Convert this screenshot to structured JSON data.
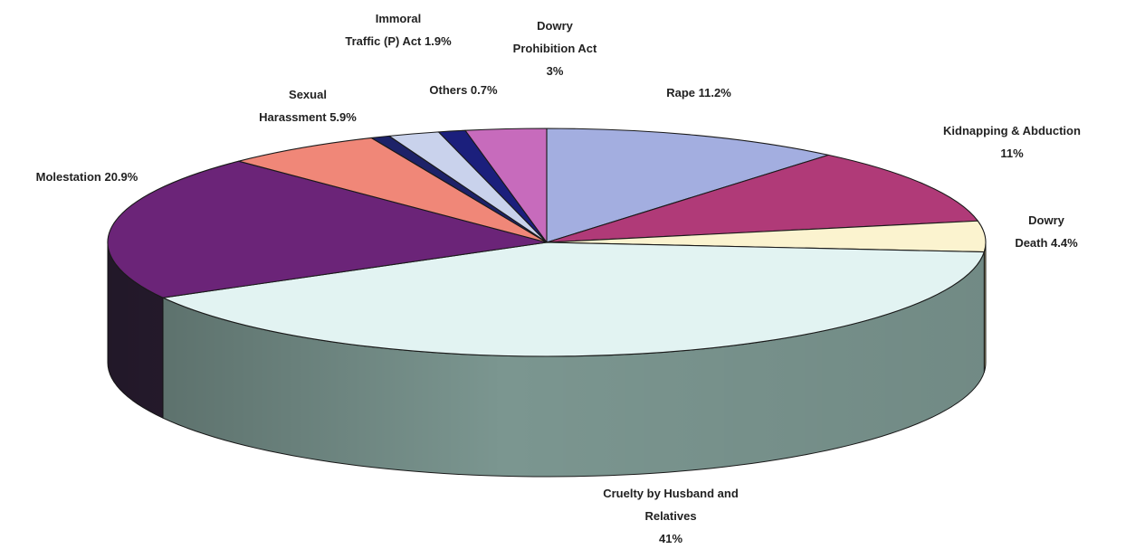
{
  "chart_data": {
    "type": "pie",
    "title": "",
    "slices": [
      {
        "name": "Rape",
        "value": 11.2,
        "label_lines": [
          "Rape 11.2%"
        ],
        "color": "#a3aee0",
        "side_color": "#6f7db5"
      },
      {
        "name": "Kidnapping & Abduction",
        "value": 11,
        "label_lines": [
          "Kidnapping & Abduction",
          "11%"
        ],
        "color": "#b03a78",
        "side_color": "#7b2150"
      },
      {
        "name": "Dowry Death",
        "value": 4.4,
        "label_lines": [
          "Dowry",
          "Death 4.4%"
        ],
        "color": "#fbf3cf",
        "side_color": "#b9ad7e"
      },
      {
        "name": "Cruelty by Husband and Relatives",
        "value": 41,
        "label_lines": [
          "Cruelty by Husband  and",
          "Relatives",
          "41%"
        ],
        "color": "#e2f3f2",
        "side_color": "#7b9690"
      },
      {
        "name": "Molestation",
        "value": 20.9,
        "label_lines": [
          "Molestation 20.9%"
        ],
        "color": "#6b2478",
        "side_color": "#2f2138"
      },
      {
        "name": "Sexual Harassment",
        "value": 5.9,
        "label_lines": [
          "Sexual",
          "Harassment 5.9%"
        ],
        "color": "#f08778",
        "side_color": "#a9574d"
      },
      {
        "name": "Others",
        "value": 0.7,
        "label_lines": [
          "Others 0.7%"
        ],
        "color": "#1d2268",
        "side_color": "#11163f"
      },
      {
        "name": "Immoral Traffic (P) Act",
        "value": 1.9,
        "label_lines": [
          "Immoral",
          "Traffic (P) Act 1.9%"
        ],
        "color": "#c9d2ec",
        "side_color": "#8e99bd"
      },
      {
        "name": "Others (dark segment)",
        "value": 1.0,
        "label_lines": [],
        "color": "#1b1f7c",
        "side_color": "#11144e"
      },
      {
        "name": "Dowry Prohibition Act",
        "value": 3,
        "label_lines": [
          "Dowry",
          "Prohibition Act",
          "3%"
        ],
        "color": "#c76bbc",
        "side_color": "#8d4285"
      }
    ]
  }
}
